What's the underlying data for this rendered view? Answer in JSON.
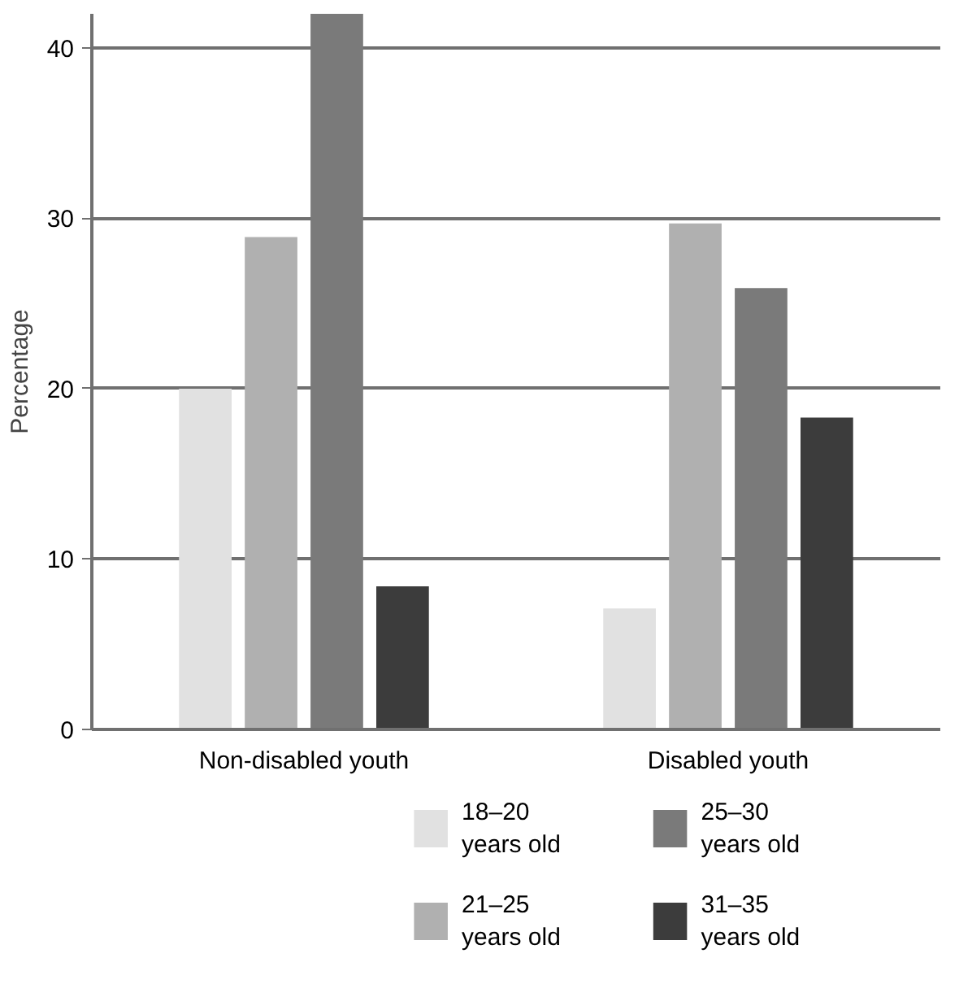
{
  "chart_data": {
    "type": "bar",
    "ylabel": "Percentage",
    "categories": [
      "Non-disabled youth",
      "Disabled youth"
    ],
    "series": [
      {
        "name": "18–20 years old",
        "color": "#e1e1e1",
        "values": [
          20,
          7.1
        ]
      },
      {
        "name": "21–25 years old",
        "color": "#b0b0b0",
        "values": [
          28.9,
          29.7
        ]
      },
      {
        "name": "25–30 years old",
        "color": "#7a7a7a",
        "values": [
          42,
          25.9
        ]
      },
      {
        "name": "31–35 years old",
        "color": "#3c3c3c",
        "values": [
          8.4,
          18.3
        ]
      }
    ],
    "ylim": [
      0,
      42
    ],
    "yticks": [
      0,
      10,
      20,
      30,
      40
    ],
    "grid": "y",
    "legend": "bottom"
  }
}
